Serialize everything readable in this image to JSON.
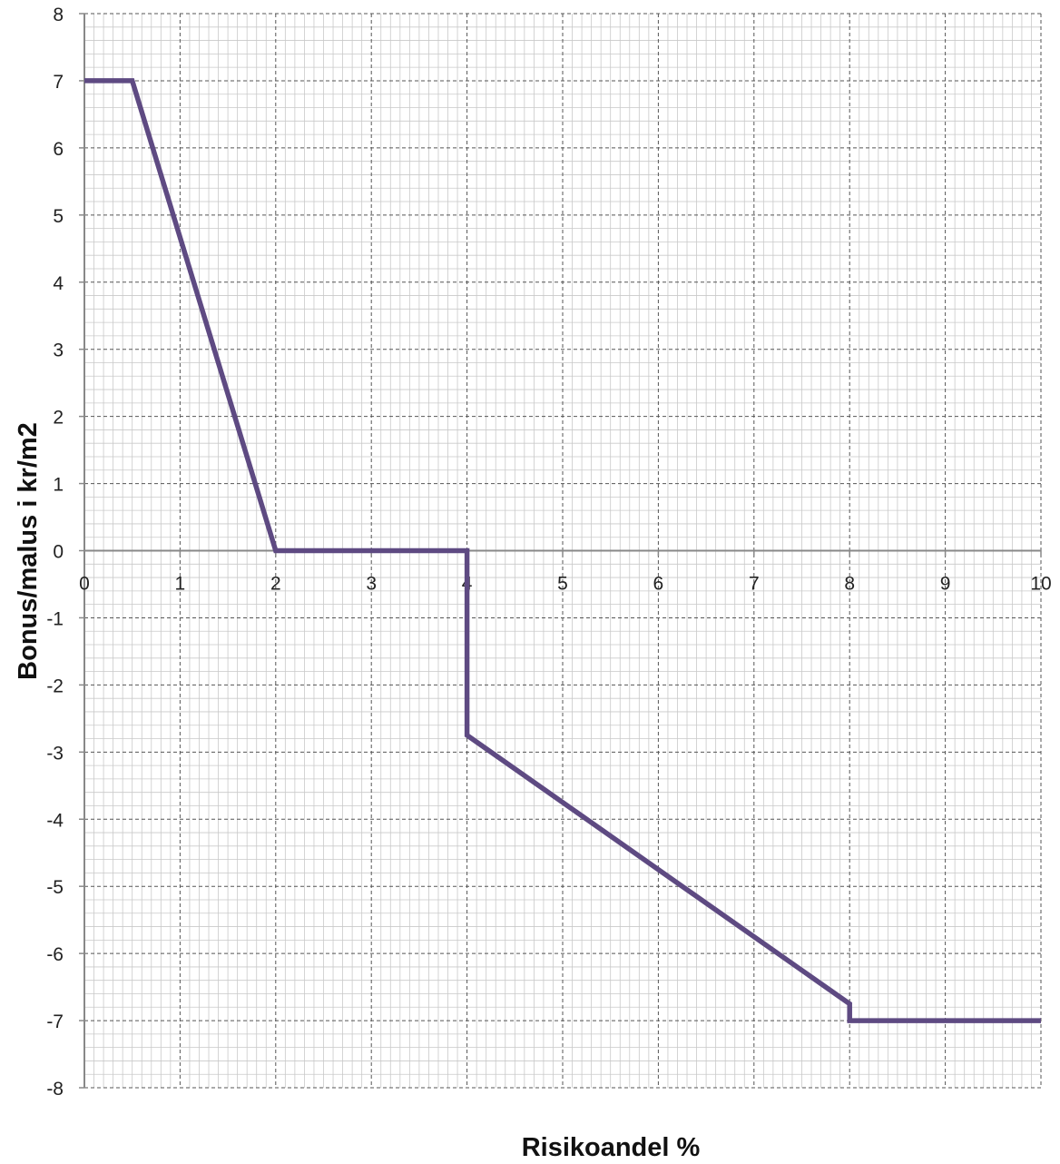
{
  "chart_data": {
    "type": "line",
    "title": "",
    "xlabel": "Risikoandel %",
    "ylabel": "Bonus/malus i kr/m2",
    "xlim": [
      0,
      10
    ],
    "ylim": [
      -8,
      8
    ],
    "x_ticks": [
      "0",
      "1",
      "2",
      "3",
      "4",
      "5",
      "6",
      "7",
      "8",
      "9",
      "10"
    ],
    "y_ticks": [
      "8",
      "7",
      "6",
      "5",
      "4",
      "3",
      "2",
      "1",
      "0",
      "-1",
      "-2",
      "-3",
      "-4",
      "-5",
      "-6",
      "-7",
      "-8"
    ],
    "grid": true,
    "series": [
      {
        "color": "#5e4a82",
        "points": [
          [
            0,
            7
          ],
          [
            0.5,
            7
          ],
          [
            2,
            0
          ],
          [
            4,
            0
          ],
          [
            4,
            -2.75
          ],
          [
            8,
            -6.75
          ],
          [
            8,
            -7
          ],
          [
            10,
            -7
          ]
        ]
      }
    ]
  }
}
